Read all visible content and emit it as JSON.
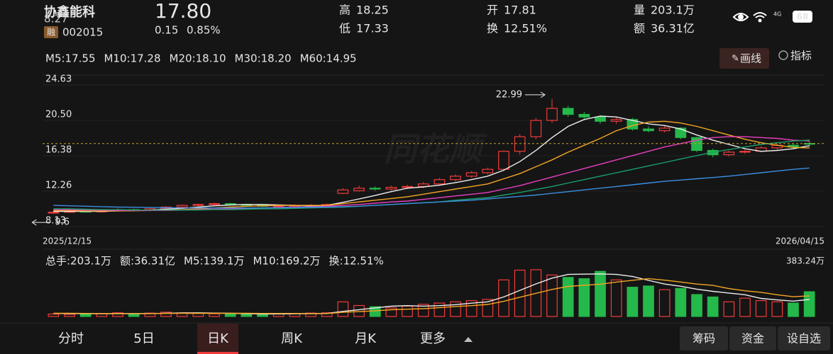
{
  "status": {
    "time": "8:27",
    "network": "4G",
    "battery": "68"
  },
  "header": {
    "name": "协鑫能科",
    "badge": "融",
    "code": "002015",
    "price": "17.80",
    "change": "0.15",
    "change_pct": "0.85%",
    "stats": [
      {
        "label": "高",
        "value": "18.25",
        "color": "#f23b3b"
      },
      {
        "label": "低",
        "value": "17.33",
        "color": "#25b84a"
      },
      {
        "label": "开",
        "value": "17.81",
        "color": "#f23b3b"
      },
      {
        "label": "换",
        "value": "12.51%",
        "color": "#e6e6e6"
      },
      {
        "label": "量",
        "value": "203.1万",
        "color": "#e6e6e6"
      },
      {
        "label": "额",
        "value": "36.31亿",
        "color": "#e6e6e6"
      }
    ]
  },
  "toolbar": {
    "draw": "画线",
    "indicator": "指标"
  },
  "watermark": "同花顺",
  "chart_data": [
    {
      "type": "candlestick",
      "categories": [
        "2025/12/15",
        null,
        null,
        null,
        null,
        null,
        null,
        null,
        null,
        null,
        null,
        null,
        null,
        null,
        null,
        null,
        null,
        null,
        null,
        null,
        null,
        null,
        null,
        null,
        null,
        null,
        null,
        null,
        null,
        null,
        null,
        null,
        null,
        null,
        null,
        null,
        null,
        null,
        null,
        null,
        null,
        null,
        null,
        null,
        null,
        null,
        null,
        "2026/04/15"
      ],
      "open": [
        9.7,
        9.8,
        9.9,
        9.85,
        10.0,
        10.1,
        10.0,
        10.2,
        10.4,
        10.6,
        10.7,
        10.8,
        10.7,
        10.6,
        10.5,
        10.5,
        10.6,
        10.6,
        12.0,
        12.3,
        12.6,
        12.5,
        12.7,
        12.8,
        13.1,
        13.6,
        14.0,
        14.4,
        14.8,
        16.9,
        18.6,
        20.5,
        21.9,
        21.2,
        20.9,
        20.4,
        20.6,
        19.5,
        19.3,
        19.6,
        18.5,
        17.0,
        16.5,
        16.8,
        16.9,
        17.3,
        17.6,
        17.81
      ],
      "high": [
        9.95,
        10.0,
        10.05,
        10.1,
        10.25,
        10.2,
        10.3,
        10.5,
        10.7,
        10.8,
        10.9,
        10.9,
        10.8,
        10.7,
        10.65,
        10.7,
        10.75,
        10.8,
        12.6,
        12.9,
        12.8,
        12.9,
        13.0,
        13.3,
        13.8,
        14.2,
        14.6,
        15.0,
        17.0,
        18.9,
        20.8,
        22.99,
        22.2,
        21.5,
        21.1,
        20.9,
        20.8,
        19.8,
        19.9,
        19.7,
        18.6,
        17.2,
        17.0,
        17.1,
        17.5,
        17.8,
        17.8,
        18.25
      ],
      "low": [
        9.6,
        9.7,
        9.77,
        9.75,
        9.9,
        9.9,
        9.9,
        10.1,
        10.3,
        10.5,
        10.6,
        10.6,
        10.5,
        10.4,
        10.3,
        10.4,
        10.5,
        10.5,
        11.9,
        12.2,
        12.3,
        12.3,
        12.5,
        12.6,
        12.9,
        13.4,
        13.8,
        14.2,
        14.6,
        16.5,
        18.3,
        20.2,
        20.9,
        20.6,
        20.1,
        20.1,
        19.3,
        19.1,
        19.1,
        18.3,
        16.8,
        16.2,
        16.3,
        16.6,
        16.8,
        17.1,
        17.2,
        17.33
      ],
      "close": [
        9.8,
        9.9,
        9.85,
        10.0,
        10.1,
        10.0,
        10.2,
        10.4,
        10.6,
        10.7,
        10.8,
        10.7,
        10.6,
        10.5,
        10.5,
        10.6,
        10.6,
        10.7,
        12.4,
        12.6,
        12.5,
        12.7,
        12.8,
        13.1,
        13.6,
        14.0,
        14.4,
        14.8,
        16.9,
        18.6,
        20.5,
        21.9,
        21.2,
        20.9,
        20.4,
        20.6,
        19.5,
        19.3,
        19.6,
        18.5,
        17.0,
        16.5,
        16.8,
        16.9,
        17.3,
        17.6,
        17.4,
        17.8
      ],
      "up_color": "#f23b3b",
      "down_color": "#25b84a",
      "series": [
        {
          "name": "M5:17.55",
          "color": "#eeeeee",
          "values": [
            9.9,
            9.9,
            9.9,
            9.9,
            9.95,
            10.0,
            10.05,
            10.15,
            10.25,
            10.4,
            10.55,
            10.65,
            10.7,
            10.7,
            10.65,
            10.6,
            10.55,
            10.6,
            10.95,
            11.35,
            11.75,
            12.2,
            12.6,
            12.75,
            12.95,
            13.25,
            13.6,
            14.0,
            14.7,
            15.7,
            17.0,
            18.5,
            19.8,
            20.6,
            21.0,
            20.9,
            20.5,
            20.1,
            19.9,
            19.5,
            18.8,
            18.2,
            17.7,
            17.2,
            16.9,
            17.0,
            17.2,
            17.55
          ]
        },
        {
          "name": "M10:17.28",
          "color": "#f5a623",
          "values": [
            10.0,
            10.0,
            9.95,
            9.95,
            9.95,
            9.97,
            10.0,
            10.05,
            10.1,
            10.2,
            10.3,
            10.4,
            10.5,
            10.55,
            10.6,
            10.6,
            10.6,
            10.6,
            10.8,
            11.0,
            11.2,
            11.4,
            11.6,
            11.9,
            12.2,
            12.5,
            12.8,
            13.1,
            13.7,
            14.3,
            15.1,
            15.9,
            16.8,
            17.6,
            18.4,
            19.3,
            19.9,
            20.3,
            20.4,
            20.2,
            19.8,
            19.3,
            18.8,
            18.3,
            17.9,
            17.6,
            17.35,
            17.28
          ]
        },
        {
          "name": "M20:18.10",
          "color": "#e93fc1",
          "values": [
            10.1,
            10.1,
            10.05,
            10.05,
            10.0,
            10.0,
            10.0,
            10.0,
            10.05,
            10.1,
            10.15,
            10.2,
            10.25,
            10.3,
            10.35,
            10.4,
            10.45,
            10.5,
            10.6,
            10.7,
            10.85,
            11.0,
            11.1,
            11.3,
            11.5,
            11.7,
            11.9,
            12.1,
            12.5,
            12.9,
            13.4,
            13.9,
            14.4,
            14.9,
            15.4,
            15.9,
            16.4,
            16.9,
            17.4,
            17.8,
            18.2,
            18.5,
            18.6,
            18.6,
            18.5,
            18.4,
            18.2,
            18.1
          ]
        },
        {
          "name": "M30:18.20",
          "color": "#1b9e6b",
          "values": [
            10.2,
            10.2,
            10.15,
            10.1,
            10.1,
            10.05,
            10.05,
            10.05,
            10.05,
            10.05,
            10.1,
            10.1,
            10.15,
            10.2,
            10.2,
            10.25,
            10.3,
            10.35,
            10.4,
            10.5,
            10.6,
            10.7,
            10.8,
            10.9,
            11.0,
            11.2,
            11.35,
            11.5,
            11.8,
            12.1,
            12.45,
            12.8,
            13.2,
            13.6,
            14.0,
            14.4,
            14.8,
            15.2,
            15.6,
            16.0,
            16.4,
            16.8,
            17.1,
            17.4,
            17.7,
            17.9,
            18.1,
            18.2
          ]
        },
        {
          "name": "M60:14.95",
          "color": "#3a8fe0",
          "values": [
            10.6,
            10.55,
            10.5,
            10.45,
            10.4,
            10.38,
            10.35,
            10.33,
            10.3,
            10.3,
            10.3,
            10.3,
            10.3,
            10.3,
            10.32,
            10.35,
            10.38,
            10.4,
            10.45,
            10.5,
            10.6,
            10.7,
            10.8,
            10.9,
            11.0,
            11.1,
            11.2,
            11.35,
            11.5,
            11.65,
            11.8,
            12.0,
            12.2,
            12.4,
            12.6,
            12.8,
            13.0,
            13.2,
            13.4,
            13.55,
            13.7,
            13.85,
            14.0,
            14.2,
            14.4,
            14.6,
            14.8,
            14.95
          ]
        }
      ],
      "ylim": [
        8.13,
        24.63
      ],
      "yticks": [
        24.63,
        {
          "value": 20.5,
          "label": "20.50"
        },
        16.38,
        12.26,
        8.13
      ],
      "grid": true
    },
    {
      "type": "bar",
      "stats": [
        "总手:203.1万",
        "额:36.31亿"
      ],
      "turnover": {
        "label": "换:",
        "value": "12.51%"
      },
      "values": [
        20,
        18,
        22,
        25,
        30,
        20,
        28,
        35,
        30,
        25,
        22,
        20,
        18,
        20,
        22,
        25,
        28,
        30,
        120,
        90,
        80,
        70,
        85,
        100,
        110,
        120,
        130,
        140,
        300,
        380,
        383.24,
        340,
        320,
        310,
        370,
        300,
        240,
        250,
        220,
        230,
        180,
        160,
        120,
        150,
        130,
        120,
        110,
        203.1
      ],
      "series": [
        {
          "name": "M5:139.1万",
          "color": "#eeeeee",
          "values": [
            25,
            24,
            23,
            22,
            23,
            23,
            24,
            27,
            29,
            30,
            28,
            26,
            23,
            21,
            21,
            22,
            23,
            25,
            42,
            56,
            70,
            84,
            89,
            85,
            89,
            97,
            109,
            120,
            160,
            214,
            267,
            315,
            345,
            347,
            349,
            345,
            328,
            296,
            266,
            248,
            224,
            206,
            192,
            178,
            148,
            136,
            126,
            139.1
          ]
        },
        {
          "name": "M10:169.2万",
          "color": "#f5a623",
          "values": [
            26,
            26,
            25,
            24,
            24,
            24,
            24,
            25,
            26,
            26,
            26,
            26,
            26,
            25,
            25,
            25,
            24,
            24,
            34,
            40,
            47,
            55,
            60,
            64,
            72,
            82,
            89,
            99,
            124,
            158,
            190,
            222,
            247,
            256,
            265,
            282,
            297,
            310,
            298,
            283,
            266,
            255,
            229,
            211,
            198,
            178,
            162,
            169.2
          ]
        }
      ],
      "ylim": [
        0,
        383.24
      ],
      "yticks": [
        {
          "value": 383.24,
          "label": "383.24万"
        }
      ]
    }
  ],
  "tabs": [
    {
      "label": "分时"
    },
    {
      "label": "5日"
    },
    {
      "label": "日K",
      "active": true
    },
    {
      "label": "周K"
    },
    {
      "label": "月K"
    },
    {
      "label": "更多"
    }
  ],
  "actions": [
    "筹码",
    "资金",
    "设自选"
  ]
}
